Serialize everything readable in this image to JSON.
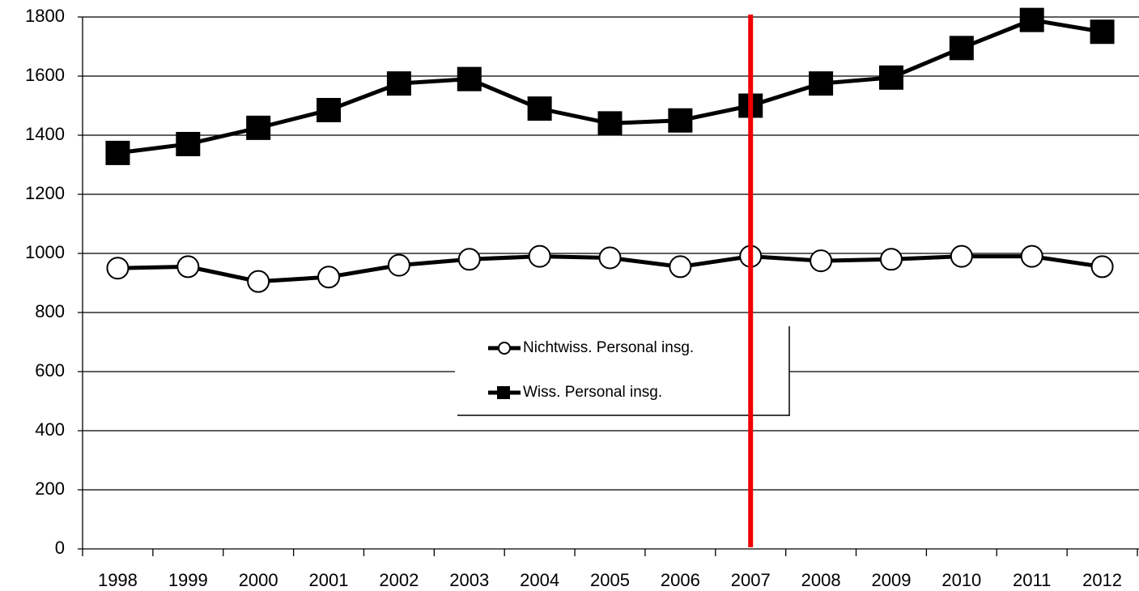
{
  "chart_data": {
    "type": "line",
    "categories": [
      "1998",
      "1999",
      "2000",
      "2001",
      "2002",
      "2003",
      "2004",
      "2005",
      "2006",
      "2007",
      "2008",
      "2009",
      "2010",
      "2011",
      "2012"
    ],
    "series": [
      {
        "name": "Nichtwiss. Personal insg.",
        "color": "#000000",
        "marker": "circle",
        "values": [
          950,
          955,
          905,
          920,
          960,
          980,
          990,
          985,
          955,
          990,
          975,
          980,
          990,
          990,
          955
        ]
      },
      {
        "name": "Wiss. Personal insg.",
        "color": "#000000",
        "marker": "square",
        "values": [
          1340,
          1370,
          1425,
          1485,
          1575,
          1590,
          1490,
          1440,
          1450,
          1500,
          1575,
          1595,
          1695,
          1790,
          1750
        ]
      }
    ],
    "ylim": [
      0,
      1800
    ],
    "yticks": [
      0,
      200,
      400,
      600,
      800,
      1000,
      1200,
      1400,
      1600,
      1800
    ],
    "grid": true,
    "vertical_line": {
      "category": "2007",
      "color": "#ee0000"
    }
  }
}
